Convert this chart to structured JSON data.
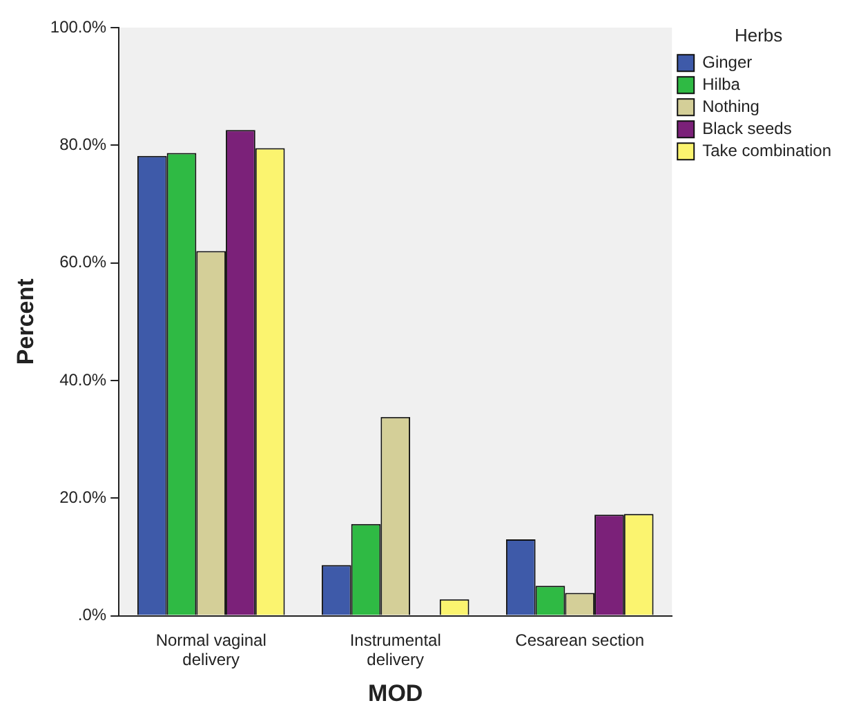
{
  "chart_data": {
    "type": "bar",
    "xlabel": "MOD",
    "ylabel": "Percent",
    "legend_title": "Herbs",
    "categories": [
      "Normal vaginal delivery",
      "Instrumental delivery",
      "Cesarean section"
    ],
    "series": [
      {
        "name": "Ginger",
        "color": "#3e5aa9",
        "values": [
          78.2,
          8.6,
          13.0
        ]
      },
      {
        "name": "Hilba",
        "color": "#2fba44",
        "values": [
          78.7,
          15.6,
          5.1
        ]
      },
      {
        "name": "Nothing",
        "color": "#d4cf98",
        "values": [
          62.0,
          33.8,
          3.9
        ]
      },
      {
        "name": "Black seeds",
        "color": "#7b2179",
        "values": [
          82.6,
          0,
          17.2
        ]
      },
      {
        "name": "Take combination",
        "color": "#fbf46f",
        "values": [
          79.5,
          2.8,
          17.3
        ]
      }
    ],
    "ylim": [
      0,
      100
    ],
    "yticks": [
      {
        "value": 0,
        "label": ".0%"
      },
      {
        "value": 20,
        "label": "20.0%"
      },
      {
        "value": 40,
        "label": "40.0%"
      },
      {
        "value": 60,
        "label": "60.0%"
      },
      {
        "value": 80,
        "label": "80.0%"
      },
      {
        "value": 100,
        "label": "100.0%"
      }
    ],
    "grid": false,
    "legend": "top right"
  }
}
